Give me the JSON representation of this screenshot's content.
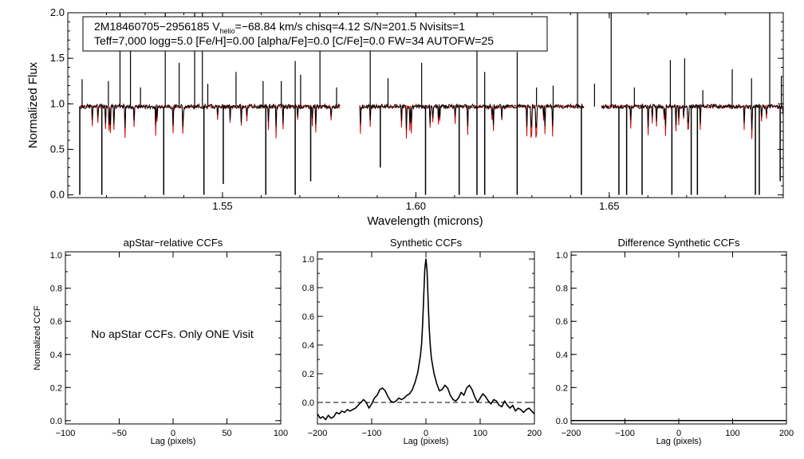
{
  "chart_data": [
    {
      "type": "line",
      "panel": "spectrum",
      "xlabel": "Wavelength (microns)",
      "ylabel": "Normalized Flux",
      "xlim": [
        1.51,
        1.695
      ],
      "ylim": [
        -0.03,
        2.0
      ],
      "xticks": [
        "1.55",
        "1.60",
        "1.65"
      ],
      "xtick_values": [
        1.55,
        1.6,
        1.65
      ],
      "yticks": [
        "0.0",
        "0.5",
        "1.0",
        "1.5",
        "2.0"
      ],
      "ytick_values": [
        0.0,
        0.5,
        1.0,
        1.5,
        2.0
      ],
      "info_line1": "2M18460705−2956185  V",
      "info_sub": "helio",
      "info_line1_rest": "=−68.84 km/s  chisq=4.12  S/N=201.5  Nvisits=1",
      "info_line2": "Teff=7,000 logg=5.0 [Fe/H]=0.00 [alpha/Fe]=0.0 [C/Fe]=0.0 FW=34 AUTOFW=25",
      "series": [
        {
          "name": "observed",
          "color": "#000000",
          "continuum": 0.97
        },
        {
          "name": "model",
          "color": "#cc0000",
          "continuum": 0.97
        }
      ],
      "chip_gaps": [
        [
          1.5805,
          1.5855
        ],
        [
          1.6435,
          1.648
        ]
      ],
      "spikes_up": [
        [
          1.5137,
          1.27
        ],
        [
          1.5205,
          1.25
        ],
        [
          1.5235,
          2.0
        ],
        [
          1.5262,
          1.75
        ],
        [
          1.5288,
          1.18
        ],
        [
          1.5352,
          2.0
        ],
        [
          1.5388,
          1.45
        ],
        [
          1.5428,
          2.0
        ],
        [
          1.5448,
          2.0
        ],
        [
          1.5462,
          1.22
        ],
        [
          1.5535,
          1.35
        ],
        [
          1.5605,
          1.25
        ],
        [
          1.5652,
          1.25
        ],
        [
          1.5688,
          1.47
        ],
        [
          1.5702,
          1.32
        ],
        [
          1.5752,
          2.0
        ],
        [
          1.5795,
          1.18
        ],
        [
          1.5882,
          1.75
        ],
        [
          1.5928,
          1.28
        ],
        [
          1.6015,
          1.45
        ],
        [
          1.6158,
          2.0
        ],
        [
          1.6178,
          1.35
        ],
        [
          1.6262,
          1.57
        ],
        [
          1.6312,
          1.18
        ],
        [
          1.6355,
          1.2
        ],
        [
          1.6418,
          2.0
        ],
        [
          1.6462,
          1.22
        ],
        [
          1.6505,
          2.0
        ],
        [
          1.6565,
          1.18
        ],
        [
          1.6658,
          1.48
        ],
        [
          1.6695,
          1.5
        ],
        [
          1.6742,
          1.15
        ],
        [
          1.6818,
          1.38
        ],
        [
          1.6868,
          1.28
        ],
        [
          1.6915,
          2.0
        ],
        [
          1.6945,
          1.3
        ]
      ],
      "spikes_down": [
        [
          1.5131,
          0.0
        ],
        [
          1.5188,
          0.0
        ],
        [
          1.5348,
          0.0
        ],
        [
          1.5452,
          0.0
        ],
        [
          1.5502,
          0.12
        ],
        [
          1.5612,
          0.0
        ],
        [
          1.5688,
          0.0
        ],
        [
          1.5728,
          0.15
        ],
        [
          1.5908,
          0.3
        ],
        [
          1.6025,
          0.0
        ],
        [
          1.6112,
          0.0
        ],
        [
          1.6158,
          0.0
        ],
        [
          1.6178,
          0.0
        ],
        [
          1.6262,
          0.0
        ],
        [
          1.6428,
          0.0
        ],
        [
          1.6525,
          0.0
        ],
        [
          1.6545,
          0.0
        ],
        [
          1.6585,
          0.0
        ],
        [
          1.6662,
          0.0
        ],
        [
          1.6712,
          0.0
        ],
        [
          1.6728,
          0.0
        ],
        [
          1.6878,
          0.0
        ],
        [
          1.6888,
          0.0
        ],
        [
          1.6942,
          0.15
        ]
      ]
    },
    {
      "type": "line",
      "panel": "apstar-ccf",
      "title": "apStar−relative CCFs",
      "xlabel": "Lag (pixels)",
      "ylabel": "Normalized CCF",
      "xlim": [
        -100,
        100
      ],
      "ylim": [
        -0.02,
        1.02
      ],
      "xticks": [
        "−100",
        "−50",
        "0",
        "50",
        "100"
      ],
      "xtick_values": [
        -100,
        -50,
        0,
        50,
        100
      ],
      "yticks": [
        "0.0",
        "0.2",
        "0.4",
        "0.6",
        "0.8",
        "1.0"
      ],
      "ytick_values": [
        0.0,
        0.2,
        0.4,
        0.6,
        0.8,
        1.0
      ],
      "note": "No apStar CCFs.  Only ONE Visit",
      "series": []
    },
    {
      "type": "line",
      "panel": "synthetic-ccf",
      "title": "Synthetic CCFs",
      "xlabel": "Lag (pixels)",
      "xlim": [
        -200,
        200
      ],
      "ylim": [
        -0.15,
        1.05
      ],
      "xticks": [
        "−200",
        "−100",
        "0",
        "100",
        "200"
      ],
      "xtick_values": [
        -200,
        -100,
        0,
        100,
        200
      ],
      "yticks": [
        "0.0",
        "0.2",
        "0.4",
        "0.6",
        "0.8",
        "1.0"
      ],
      "ytick_values": [
        0.0,
        0.2,
        0.4,
        0.6,
        0.8,
        1.0
      ],
      "reference_line": 0.0,
      "series": [
        {
          "color": "#000000",
          "x": [
            -200,
            -195,
            -190,
            -185,
            -180,
            -175,
            -170,
            -165,
            -160,
            -155,
            -150,
            -145,
            -140,
            -135,
            -130,
            -125,
            -120,
            -115,
            -110,
            -105,
            -100,
            -95,
            -90,
            -85,
            -80,
            -75,
            -70,
            -65,
            -60,
            -55,
            -50,
            -45,
            -40,
            -35,
            -30,
            -25,
            -20,
            -15,
            -10,
            -8,
            -6,
            -4,
            -2,
            0,
            2,
            4,
            6,
            8,
            10,
            15,
            20,
            25,
            30,
            35,
            40,
            45,
            50,
            55,
            60,
            65,
            70,
            75,
            80,
            85,
            90,
            95,
            100,
            105,
            110,
            115,
            120,
            125,
            130,
            135,
            140,
            145,
            150,
            155,
            160,
            165,
            170,
            175,
            180,
            185,
            190,
            195,
            200
          ],
          "y": [
            -0.08,
            -0.11,
            -0.1,
            -0.12,
            -0.09,
            -0.11,
            -0.1,
            -0.07,
            -0.08,
            -0.06,
            -0.07,
            -0.05,
            -0.06,
            -0.05,
            -0.04,
            -0.02,
            0.0,
            0.02,
            0.0,
            -0.04,
            -0.01,
            0.03,
            0.05,
            0.09,
            0.1,
            0.08,
            0.04,
            0.01,
            0.0,
            0.01,
            0.03,
            0.02,
            0.03,
            0.05,
            0.06,
            0.09,
            0.14,
            0.21,
            0.33,
            0.41,
            0.55,
            0.75,
            0.93,
            1.0,
            0.92,
            0.72,
            0.52,
            0.4,
            0.31,
            0.2,
            0.13,
            0.08,
            0.09,
            0.12,
            0.1,
            0.05,
            0.02,
            0.01,
            0.03,
            0.07,
            0.05,
            0.1,
            0.12,
            0.09,
            0.04,
            0.0,
            0.03,
            0.06,
            0.04,
            0.01,
            -0.01,
            0.02,
            0.01,
            -0.02,
            -0.03,
            0.01,
            -0.02,
            -0.04,
            -0.02,
            -0.06,
            -0.04,
            -0.05,
            -0.07,
            -0.05,
            -0.04,
            -0.06,
            -0.08
          ]
        }
      ]
    },
    {
      "type": "line",
      "panel": "difference-ccf",
      "title": "Difference Synthetic CCFs",
      "xlabel": "Lag (pixels)",
      "xlim": [
        -200,
        200
      ],
      "ylim": [
        -0.02,
        1.02
      ],
      "xticks": [
        "−200",
        "−100",
        "0",
        "100",
        "200"
      ],
      "xtick_values": [
        -200,
        -100,
        0,
        100,
        200
      ],
      "yticks": [
        "0.0",
        "0.2",
        "0.4",
        "0.6",
        "0.8",
        "1.0"
      ],
      "ytick_values": [
        0.0,
        0.2,
        0.4,
        0.6,
        0.8,
        1.0
      ],
      "series": [
        {
          "color": "#000000",
          "x": [
            -200,
            200
          ],
          "y": [
            0.0,
            0.0
          ]
        }
      ]
    }
  ]
}
